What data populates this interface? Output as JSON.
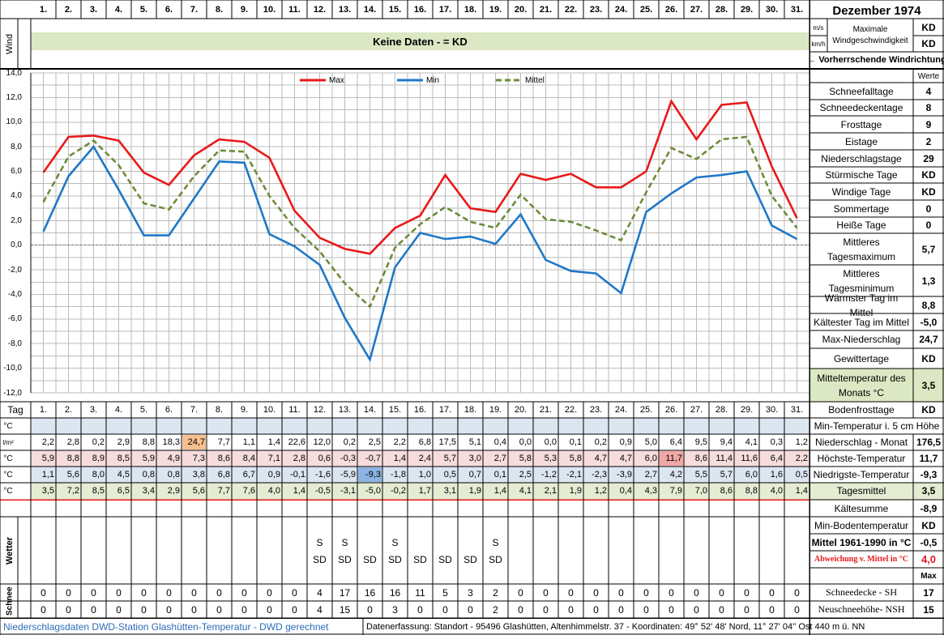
{
  "header": {
    "days": [
      "1.",
      "2.",
      "3.",
      "4.",
      "5.",
      "6.",
      "7.",
      "8.",
      "9.",
      "10.",
      "11.",
      "12.",
      "13.",
      "14.",
      "15.",
      "16.",
      "17.",
      "18.",
      "19.",
      "20.",
      "21.",
      "22.",
      "23.",
      "24.",
      "25.",
      "26.",
      "27.",
      "28.",
      "29.",
      "30.",
      "31."
    ],
    "month_title": "Dezember 1974"
  },
  "wind": {
    "side_label": "Wind",
    "banner": "Keine Daten -  = KD",
    "unit_ms": "m/s",
    "unit_kmh": "km/h",
    "max_label": "Maximale Windgeschwindigkeit",
    "max_ms": "KD",
    "max_kmh": "KD",
    "dir_label": "← Vorherrschende Windrichtung",
    "values_header": "Werte"
  },
  "stats": [
    {
      "label": "Schneefalltage",
      "value": "4"
    },
    {
      "label": "Schneedeckentage",
      "value": "8"
    },
    {
      "label": "Frosttage",
      "value": "9"
    },
    {
      "label": "Eistage",
      "value": "2"
    },
    {
      "label": "Niederschlagstage",
      "value": "29"
    },
    {
      "label": "Stürmische Tage",
      "value": "KD"
    },
    {
      "label": "Windige Tage",
      "value": "KD"
    },
    {
      "label": "Sommertage",
      "value": "0"
    },
    {
      "label": "Heiße Tage",
      "value": "0"
    },
    {
      "label": "Mittleres Tagesmaximum",
      "value": "5,7"
    },
    {
      "label": "Mittleres Tagesminimum",
      "value": "1,3"
    },
    {
      "label": "Wärmster Tag im Mittel",
      "value": "8,8"
    },
    {
      "label": "Kältester Tag im Mittel",
      "value": "-5,0"
    },
    {
      "label": "Max-Niederschlag",
      "value": "24,7"
    },
    {
      "label": "Gewittertage",
      "value": "KD"
    },
    {
      "label": "Mitteltemperatur des Monats °C",
      "value": "3,5"
    },
    {
      "label": "Bodenfrosttage",
      "value": "KD"
    }
  ],
  "table": {
    "tag_label": "Tag",
    "unit_c": "°C",
    "unit_precip": "l/m²",
    "soil_label": "Min-Temperatur i. 5 cm Höhe",
    "precip_label": "Niederschlag - Monat",
    "precip_total": "176,5",
    "max_label": "Höchste-Temperatur",
    "max_total": "11,7",
    "min_label": "Niedrigste-Temperatur",
    "min_total": "-9,3",
    "mean_label": "Tagesmittel",
    "mean_total": "3,5",
    "precip": [
      "2,2",
      "2,8",
      "0,2",
      "2,9",
      "8,8",
      "18,3",
      "24,7",
      "7,7",
      "1,1",
      "1,4",
      "22,6",
      "12,0",
      "0,2",
      "2,5",
      "2,2",
      "6,8",
      "17,5",
      "5,1",
      "0,4",
      "0,0",
      "0,0",
      "0,1",
      "0,2",
      "0,9",
      "5,0",
      "6,4",
      "9,5",
      "9,4",
      "4,1",
      "0,3",
      "1,2"
    ],
    "max": [
      "5,9",
      "8,8",
      "8,9",
      "8,5",
      "5,9",
      "4,9",
      "7,3",
      "8,6",
      "8,4",
      "7,1",
      "2,8",
      "0,6",
      "-0,3",
      "-0,7",
      "1,4",
      "2,4",
      "5,7",
      "3,0",
      "2,7",
      "5,8",
      "5,3",
      "5,8",
      "4,7",
      "4,7",
      "6,0",
      "11,7",
      "8,6",
      "11,4",
      "11,6",
      "6,4",
      "2,2"
    ],
    "min": [
      "1,1",
      "5,6",
      "8,0",
      "4,5",
      "0,8",
      "0,8",
      "3,8",
      "6,8",
      "6,7",
      "0,9",
      "-0,1",
      "-1,6",
      "-5,9",
      "-9,3",
      "-1,8",
      "1,0",
      "0,5",
      "0,7",
      "0,1",
      "2,5",
      "-1,2",
      "-2,1",
      "-2,3",
      "-3,9",
      "2,7",
      "4,2",
      "5,5",
      "5,7",
      "6,0",
      "1,6",
      "0,5"
    ],
    "mean": [
      "3,5",
      "7,2",
      "8,5",
      "6,5",
      "3,4",
      "2,9",
      "5,6",
      "7,7",
      "7,6",
      "4,0",
      "1,4",
      "-0,5",
      "-3,1",
      "-5,0",
      "-0,2",
      "1,7",
      "3,1",
      "1,9",
      "1,4",
      "4,1",
      "2,1",
      "1,9",
      "1,2",
      "0,4",
      "4,3",
      "7,9",
      "7,0",
      "8,6",
      "8,8",
      "4,0",
      "1,4"
    ]
  },
  "summary": {
    "kaeltesumme_label": "Kältesumme",
    "kaeltesumme_value": "-8,9",
    "min_boden_label": "Min-Bodentemperatur",
    "min_boden_value": "KD",
    "mittel_label": "Mittel 1961-1990 in °C",
    "mittel_value": "-0,5",
    "abw_label": "Abweichung v. Mittel in °C",
    "abw_value": "4,0",
    "max_header": "Max",
    "sh_label": "Schneedecke -  SH",
    "sh_value": "17",
    "nsh_label": "Neuschneehöhe- NSH",
    "nsh_value": "15"
  },
  "weather": {
    "label": "Wetter",
    "row1": [
      "",
      "",
      "",
      "",
      "",
      "",
      "",
      "",
      "",
      "",
      "",
      "S",
      "S",
      "",
      "S",
      "",
      "",
      "",
      "S",
      "",
      "",
      "",
      "",
      "",
      "",
      "",
      "",
      "",
      "",
      "",
      ""
    ],
    "row2": [
      "",
      "",
      "",
      "",
      "",
      "",
      "",
      "",
      "",
      "",
      "",
      "SD",
      "SD",
      "SD",
      "SD",
      "SD",
      "SD",
      "SD",
      "SD",
      "",
      "",
      "",
      "",
      "",
      "",
      "",
      "",
      "",
      "",
      "",
      ""
    ]
  },
  "snow": {
    "label": "Schnee",
    "sh": [
      "0",
      "0",
      "0",
      "0",
      "0",
      "0",
      "0",
      "0",
      "0",
      "0",
      "0",
      "4",
      "17",
      "16",
      "16",
      "11",
      "5",
      "3",
      "2",
      "0",
      "0",
      "0",
      "0",
      "0",
      "0",
      "0",
      "0",
      "0",
      "0",
      "0",
      "0"
    ],
    "nsh": [
      "0",
      "0",
      "0",
      "0",
      "0",
      "0",
      "0",
      "0",
      "0",
      "0",
      "0",
      "4",
      "15",
      "0",
      "3",
      "0",
      "0",
      "0",
      "2",
      "0",
      "0",
      "0",
      "0",
      "0",
      "0",
      "0",
      "0",
      "0",
      "0",
      "0",
      "0"
    ]
  },
  "footer": {
    "left": "Niederschlagsdaten DWD-Station Glashütten-Temperatur -  DWD gerechnet",
    "right": "Datenerfassung: Standort -  95496  Glashütten, Altenhimmelstr. 37 - Koordinaten:  49° 52' 48' Nord,   11° 27' 04'' Ost   440 m ü. NN"
  },
  "colors": {
    "max": "#e8191b",
    "min": "#1f78c8",
    "mean": "#6d8c3a",
    "wind_banner": "#dbe8c3",
    "soil_row": "#dce6f1",
    "max_row": "#f6dcdc",
    "min_row": "#dce6f1",
    "mean_row": "#e4edd2",
    "highlight_precip": "#f8c08f",
    "highlight_max": "#f2a7a7",
    "highlight_min": "#8db4e2"
  },
  "chart_data": {
    "type": "line",
    "x": [
      1,
      2,
      3,
      4,
      5,
      6,
      7,
      8,
      9,
      10,
      11,
      12,
      13,
      14,
      15,
      16,
      17,
      18,
      19,
      20,
      21,
      22,
      23,
      24,
      25,
      26,
      27,
      28,
      29,
      30,
      31
    ],
    "series": [
      {
        "name": "Max",
        "values": [
          5.9,
          8.8,
          8.9,
          8.5,
          5.9,
          4.9,
          7.3,
          8.6,
          8.4,
          7.1,
          2.8,
          0.6,
          -0.3,
          -0.7,
          1.4,
          2.4,
          5.7,
          3.0,
          2.7,
          5.8,
          5.3,
          5.8,
          4.7,
          4.7,
          6.0,
          11.7,
          8.6,
          11.4,
          11.6,
          6.4,
          2.2
        ],
        "color": "#e8191b",
        "style": "solid"
      },
      {
        "name": "Min",
        "values": [
          1.1,
          5.6,
          8.0,
          4.5,
          0.8,
          0.8,
          3.8,
          6.8,
          6.7,
          0.9,
          -0.1,
          -1.6,
          -5.9,
          -9.3,
          -1.8,
          1.0,
          0.5,
          0.7,
          0.1,
          2.5,
          -1.2,
          -2.1,
          -2.3,
          -3.9,
          2.7,
          4.2,
          5.5,
          5.7,
          6.0,
          1.6,
          0.5
        ],
        "color": "#1f78c8",
        "style": "solid"
      },
      {
        "name": "Mittel",
        "values": [
          3.5,
          7.2,
          8.5,
          6.5,
          3.4,
          2.9,
          5.6,
          7.7,
          7.6,
          4.0,
          1.4,
          -0.5,
          -3.1,
          -5.0,
          -0.2,
          1.7,
          3.1,
          1.9,
          1.4,
          4.1,
          2.1,
          1.9,
          1.2,
          0.4,
          4.3,
          7.9,
          7.0,
          8.6,
          8.8,
          4.0,
          1.4
        ],
        "color": "#6d8c3a",
        "style": "dashed"
      }
    ],
    "ylim": [
      -12,
      14
    ],
    "yticks": [
      "14,0",
      "12,0",
      "10,0",
      "8,0",
      "6,0",
      "4,0",
      "2,0",
      "0,0",
      "-2,0",
      "-4,0",
      "-6,0",
      "-8,0",
      "-10,0",
      "-12,0"
    ],
    "grid": true,
    "legend": "top-center"
  }
}
